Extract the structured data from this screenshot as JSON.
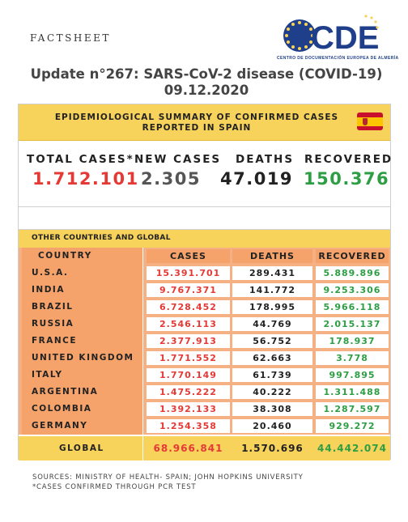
{
  "header": {
    "factsheet": "FACTSHEET",
    "logo_text": "CDE",
    "logo_subtitle": "CENTRO DE DOCUMENTACIÓN EUROPEA DE ALMERÍA",
    "title": "Update n°267: SARS-CoV-2 disease (COVID-19) 09.12.2020"
  },
  "summary": {
    "title_line1": "EPIDEMIOLOGICAL SUMMARY OF CONFIRMED CASES",
    "title_line2": "REPORTED IN SPAIN",
    "labels": {
      "total": "TOTAL CASES*",
      "new": "NEW CASES",
      "deaths": "DEATHS",
      "recovered": "RECOVERED"
    },
    "values": {
      "total": "1.712.101",
      "new": "2.305",
      "deaths": "47.019",
      "recovered": "150.376"
    },
    "colors": {
      "total": "#e53935",
      "new": "#555555",
      "deaths": "#222222",
      "recovered": "#2e9e44"
    }
  },
  "other": {
    "section_label": "OTHER COUNTRIES AND GLOBAL",
    "columns": [
      "COUNTRY",
      "CASES",
      "DEATHS",
      "RECOVERED"
    ],
    "rows": [
      {
        "country": "U.S.A.",
        "cases": "15.391.701",
        "deaths": "289.431",
        "recovered": "5.889.896"
      },
      {
        "country": "INDIA",
        "cases": "9.767.371",
        "deaths": "141.772",
        "recovered": "9.253.306"
      },
      {
        "country": "BRAZIL",
        "cases": "6.728.452",
        "deaths": "178.995",
        "recovered": "5.966.118"
      },
      {
        "country": "RUSSIA",
        "cases": "2.546.113",
        "deaths": "44.769",
        "recovered": "2.015.137"
      },
      {
        "country": "FRANCE",
        "cases": "2.377.913",
        "deaths": "56.752",
        "recovered": "178.937"
      },
      {
        "country": "UNITED KINGDOM",
        "cases": "1.771.552",
        "deaths": "62.663",
        "recovered": "3.778"
      },
      {
        "country": "ITALY",
        "cases": "1.770.149",
        "deaths": "61.739",
        "recovered": "997.895"
      },
      {
        "country": "ARGENTINA",
        "cases": "1.475.222",
        "deaths": "40.222",
        "recovered": "1.311.488"
      },
      {
        "country": "COLOMBIA",
        "cases": "1.392.133",
        "deaths": "38.308",
        "recovered": "1.287.597"
      },
      {
        "country": "GERMANY",
        "cases": "1.254.358",
        "deaths": "20.460",
        "recovered": "929.272"
      }
    ],
    "global": {
      "country": "GLOBAL",
      "cases": "68.966.841",
      "deaths": "1.570.696",
      "recovered": "44.442.074"
    }
  },
  "footer": {
    "sources": "SOURCES: MINISTRY OF HEALTH- SPAIN; JOHN HOPKINS UNIVERSITY",
    "note": "*CASES CONFIRMED THROUGH PCR TEST"
  },
  "icons": {
    "logo": "eu-stars-logo-icon",
    "flag": "spain-flag-icon",
    "globe": "globe-icon"
  }
}
